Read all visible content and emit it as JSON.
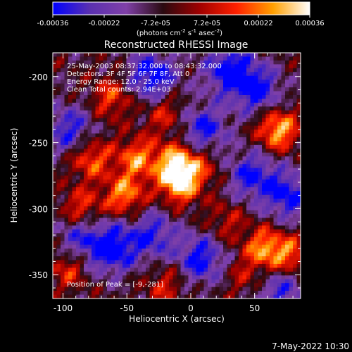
{
  "chart_data": {
    "type": "heatmap",
    "title": "Reconstructed RHESSI Image",
    "colorbar": {
      "ticks": [
        "-0.00036",
        "-0.00022",
        "-7.2e-05",
        "7.2e-05",
        "0.00022",
        "0.00036"
      ],
      "min": -0.00036,
      "max": 0.00036,
      "unit_parts": [
        "(photons cm",
        "-2",
        " s",
        "-1",
        " asec",
        "-2",
        ")"
      ],
      "colormap": [
        "#0000ff",
        "#5a30b0",
        "#8040a8",
        "#2a0a10",
        "#a00000",
        "#ff2000",
        "#ffa000",
        "#ffffff"
      ]
    },
    "xlabel": "Heliocentric X (arcsec)",
    "ylabel": "Heliocentric Y (arcsec)",
    "xlim": [
      -108,
      86
    ],
    "ylim": [
      -368,
      -182
    ],
    "xticks": [
      -100,
      -50,
      0,
      50
    ],
    "xtick_labels": [
      "-100",
      "-50",
      "0",
      "50"
    ],
    "yticks": [
      -200,
      -250,
      -300,
      -350
    ],
    "ytick_labels": [
      "-200",
      "-250",
      "-300",
      "-350"
    ],
    "bright_sources": [
      {
        "x": -62,
        "y": -216,
        "value": 0.00022
      },
      {
        "x": -20,
        "y": -228,
        "value": 0.00018
      },
      {
        "x": 68,
        "y": -240,
        "value": 0.00036
      },
      {
        "x": -78,
        "y": -262,
        "value": 0.00026
      },
      {
        "x": -42,
        "y": -262,
        "value": 0.00028
      },
      {
        "x": -12,
        "y": -265,
        "value": 0.00033
      },
      {
        "x": 8,
        "y": -268,
        "value": 0.00016
      },
      {
        "x": -52,
        "y": -290,
        "value": 0.0003
      },
      {
        "x": -9,
        "y": -281,
        "value": 0.00036
      },
      {
        "x": -86,
        "y": -300,
        "value": 0.00022
      },
      {
        "x": 28,
        "y": -310,
        "value": 0.00014
      },
      {
        "x": 58,
        "y": -330,
        "value": 0.0003
      },
      {
        "x": 78,
        "y": -336,
        "value": 0.00024
      },
      {
        "x": -96,
        "y": -345,
        "value": 0.0002
      },
      {
        "x": -20,
        "y": -358,
        "value": 0.00016
      },
      {
        "x": 42,
        "y": -352,
        "value": 0.00012
      }
    ],
    "dark_regions": [
      {
        "x": -30,
        "y": -200,
        "value": -0.00034
      },
      {
        "x": 30,
        "y": -195,
        "value": -0.00033
      },
      {
        "x": 52,
        "y": -210,
        "value": -0.0003
      },
      {
        "x": 10,
        "y": -240,
        "value": -0.00028
      },
      {
        "x": 48,
        "y": -275,
        "value": -0.00028
      },
      {
        "x": 76,
        "y": -290,
        "value": -0.0003
      },
      {
        "x": -95,
        "y": -240,
        "value": -0.00026
      },
      {
        "x": -62,
        "y": -330,
        "value": -0.00036
      },
      {
        "x": -30,
        "y": -320,
        "value": -0.00026
      },
      {
        "x": 8,
        "y": -338,
        "value": -0.0003
      },
      {
        "x": -88,
        "y": -322,
        "value": -0.00022
      },
      {
        "x": 70,
        "y": -362,
        "value": -0.00024
      }
    ],
    "annotations": [
      "25-May-2003 08:37:32.000 to 08:43:32.000",
      "Detectors: 3F 4F 5F 6F 7F 8F, Att 0",
      "Energy Range: 12.0 - 25.0 keV",
      "Clean     Total counts: 2.94E+03"
    ],
    "peak_label": "Position of Peak = [-9,-281]"
  },
  "footer": {
    "date": "7-May-2022 10:30"
  }
}
